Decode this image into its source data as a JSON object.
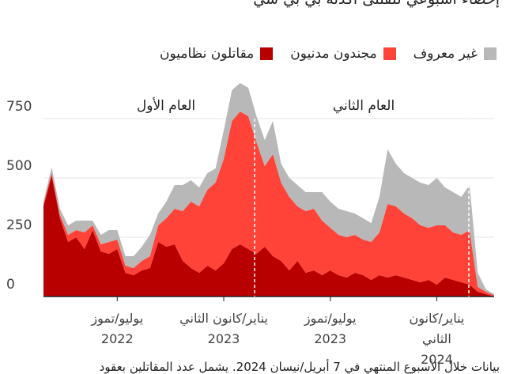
{
  "chart_data": {
    "type": "stacked_area",
    "title": "إحصاء أسبوعي للقتلى أكدته بي بي سي",
    "footnote": "بيانات خلال الأسبوع المنتهي في 7 أبريل/نيسان 2024. يشمل عدد المقاتلين بعقود",
    "annotations": [
      "العام الأول",
      "العام الثاني"
    ],
    "categories": [
      null,
      null,
      null,
      null,
      null,
      null,
      null,
      null,
      null,
      "يوليو/تموز\n2022",
      null,
      null,
      null,
      null,
      null,
      null,
      null,
      null,
      null,
      null,
      null,
      null,
      "يناير/كانون الثاني\n2023",
      null,
      null,
      null,
      null,
      null,
      null,
      null,
      null,
      null,
      null,
      null,
      null,
      "يوليو/تموز\n2023",
      null,
      null,
      null,
      null,
      null,
      null,
      null,
      null,
      null,
      null,
      null,
      null,
      "يناير/كانون الثاني\n2024",
      null,
      null,
      null,
      null,
      null,
      null,
      null
    ],
    "series": [
      {
        "name": "مقاتلون نظاميون",
        "color": "#b80000",
        "values": [
          380,
          510,
          330,
          230,
          250,
          200,
          280,
          190,
          180,
          200,
          100,
          90,
          110,
          120,
          230,
          210,
          220,
          150,
          120,
          100,
          130,
          110,
          140,
          200,
          220,
          200,
          180,
          210,
          170,
          150,
          110,
          150,
          100,
          110,
          90,
          110,
          90,
          80,
          100,
          90,
          70,
          90,
          80,
          90,
          80,
          70,
          60,
          70,
          50,
          80,
          70,
          60,
          50,
          20,
          10,
          0
        ]
      },
      {
        "name": "مجندون مدنيون",
        "color": "#ff4338",
        "values": [
          10,
          10,
          15,
          30,
          30,
          70,
          20,
          30,
          50,
          40,
          30,
          30,
          40,
          50,
          70,
          120,
          150,
          210,
          280,
          280,
          320,
          370,
          440,
          540,
          560,
          560,
          470,
          340,
          430,
          330,
          310,
          230,
          260,
          260,
          230,
          180,
          170,
          170,
          160,
          150,
          160,
          180,
          310,
          290,
          270,
          260,
          240,
          220,
          250,
          220,
          200,
          200,
          230,
          20,
          10,
          5
        ]
      },
      {
        "name": "غير معروف",
        "color": "#b8b8b8",
        "values": [
          10,
          25,
          25,
          40,
          40,
          50,
          20,
          40,
          50,
          40,
          40,
          50,
          60,
          90,
          50,
          70,
          100,
          110,
          90,
          80,
          70,
          60,
          120,
          130,
          120,
          120,
          110,
          110,
          140,
          80,
          80,
          90,
          80,
          70,
          120,
          110,
          110,
          110,
          90,
          90,
          80,
          150,
          230,
          180,
          170,
          170,
          180,
          180,
          200,
          160,
          170,
          160,
          190,
          60,
          10,
          5
        ]
      }
    ],
    "ylim": [
      0,
      950
    ],
    "yticks": [
      0,
      250,
      500,
      750
    ],
    "grid": true,
    "legend": "top-right"
  }
}
